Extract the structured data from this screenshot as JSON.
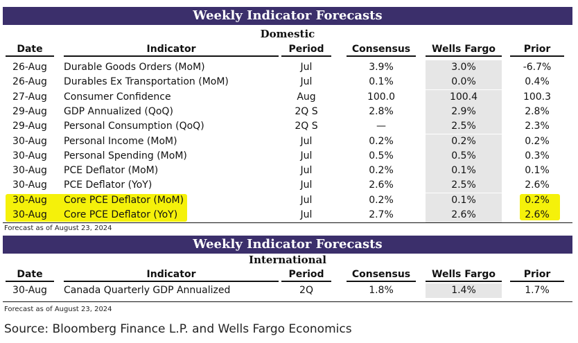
{
  "domestic": {
    "banner": "Weekly Indicator Forecasts",
    "section": "Domestic",
    "headers": {
      "date": "Date",
      "indicator": "Indicator",
      "period": "Period",
      "consensus": "Consensus",
      "wells_fargo": "Wells Fargo",
      "prior": "Prior"
    },
    "rows": [
      {
        "date": "26-Aug",
        "indicator": "Durable Goods Orders (MoM)",
        "period": "Jul",
        "consensus": "3.9%",
        "wells_fargo": "3.0%",
        "prior": "-6.7%"
      },
      {
        "date": "26-Aug",
        "indicator": "Durables Ex Transportation (MoM)",
        "period": "Jul",
        "consensus": "0.1%",
        "wells_fargo": "0.0%",
        "prior": "0.4%"
      },
      {
        "date": "27-Aug",
        "indicator": "Consumer Confidence",
        "period": "Aug",
        "consensus": "100.0",
        "wells_fargo": "100.4",
        "prior": "100.3"
      },
      {
        "date": "29-Aug",
        "indicator": "GDP Annualized (QoQ)",
        "period": "2Q S",
        "consensus": "2.8%",
        "wells_fargo": "2.9%",
        "prior": "2.8%"
      },
      {
        "date": "29-Aug",
        "indicator": "Personal Consumption (QoQ)",
        "period": "2Q S",
        "consensus": "—",
        "wells_fargo": "2.5%",
        "prior": "2.3%"
      },
      {
        "date": "30-Aug",
        "indicator": "Personal Income (MoM)",
        "period": "Jul",
        "consensus": "0.2%",
        "wells_fargo": "0.2%",
        "prior": "0.2%"
      },
      {
        "date": "30-Aug",
        "indicator": "Personal  Spending (MoM)",
        "period": "Jul",
        "consensus": "0.5%",
        "wells_fargo": "0.5%",
        "prior": "0.3%"
      },
      {
        "date": "30-Aug",
        "indicator": "PCE Deflator (MoM)",
        "period": "Jul",
        "consensus": "0.2%",
        "wells_fargo": "0.1%",
        "prior": "0.1%"
      },
      {
        "date": "30-Aug",
        "indicator": "PCE Deflator (YoY)",
        "period": "Jul",
        "consensus": "2.6%",
        "wells_fargo": "2.5%",
        "prior": "2.6%"
      },
      {
        "date": "30-Aug",
        "indicator": "Core PCE Deflator (MoM)",
        "period": "Jul",
        "consensus": "0.2%",
        "wells_fargo": "0.1%",
        "prior": "0.2%"
      },
      {
        "date": "30-Aug",
        "indicator": "Core PCE Deflator (YoY)",
        "period": "Jul",
        "consensus": "2.7%",
        "wells_fargo": "2.6%",
        "prior": "2.6%"
      }
    ],
    "forecast_note": "Forecast as of August 23, 2024"
  },
  "international": {
    "banner": "Weekly Indicator Forecasts",
    "section": "International",
    "headers": {
      "date": "Date",
      "indicator": "Indicator",
      "period": "Period",
      "consensus": "Consensus",
      "wells_fargo": "Wells Fargo",
      "prior": "Prior"
    },
    "rows": [
      {
        "date": "30-Aug",
        "indicator": "Canada Quarterly GDP Annualized",
        "period": "2Q",
        "consensus": "1.8%",
        "wells_fargo": "1.4%",
        "prior": "1.7%"
      }
    ],
    "forecast_note": "Forecast as of August 23, 2024"
  },
  "source": "Source: Bloomberg Finance L.P. and Wells Fargo Economics",
  "colors": {
    "banner": "#3b2f6b",
    "highlight": "#f5f10a",
    "wells_fargo_shade": "#e6e6e6"
  }
}
